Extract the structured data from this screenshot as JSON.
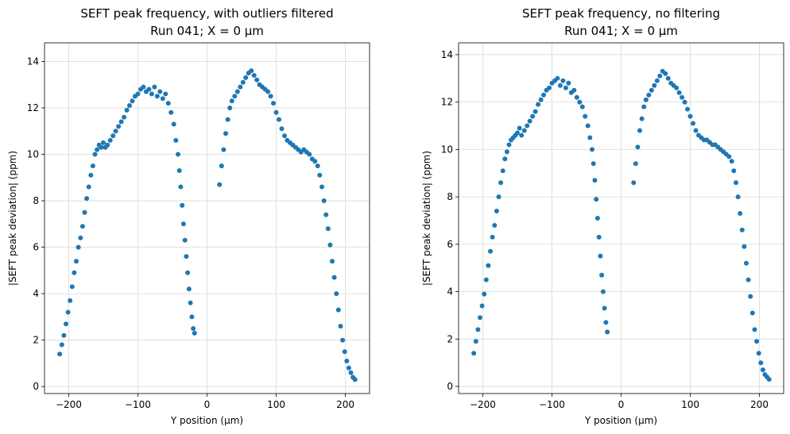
{
  "chart_data": [
    {
      "type": "scatter",
      "title": "SEFT peak frequency, with outliers filtered",
      "subtitle": "Run 041; X = 0 µm",
      "xlabel": "Y position (µm)",
      "ylabel": "|SEFT peak deviation| (ppm)",
      "xlim": [
        -235,
        235
      ],
      "ylim": [
        -0.3,
        14.8
      ],
      "xticks": [
        -200,
        -100,
        0,
        100,
        200
      ],
      "xtick_labels": [
        "−200",
        "−100",
        "0",
        "100",
        "200"
      ],
      "yticks": [
        0,
        2,
        4,
        6,
        8,
        10,
        12,
        14
      ],
      "ytick_labels": [
        "0",
        "2",
        "4",
        "6",
        "8",
        "10",
        "12",
        "14"
      ],
      "grid": true,
      "marker_color": "#1f77b4",
      "points": [
        [
          -213,
          1.4
        ],
        [
          -210,
          1.8
        ],
        [
          -207,
          2.2
        ],
        [
          -204,
          2.7
        ],
        [
          -201,
          3.2
        ],
        [
          -198,
          3.7
        ],
        [
          -195,
          4.3
        ],
        [
          -192,
          4.9
        ],
        [
          -189,
          5.4
        ],
        [
          -186,
          6.0
        ],
        [
          -183,
          6.4
        ],
        [
          -180,
          6.9
        ],
        [
          -177,
          7.5
        ],
        [
          -174,
          8.1
        ],
        [
          -171,
          8.6
        ],
        [
          -168,
          9.1
        ],
        [
          -165,
          9.5
        ],
        [
          -162,
          10.0
        ],
        [
          -159,
          10.2
        ],
        [
          -156,
          10.4
        ],
        [
          -153,
          10.3
        ],
        [
          -150,
          10.5
        ],
        [
          -147,
          10.3
        ],
        [
          -144,
          10.4
        ],
        [
          -140,
          10.6
        ],
        [
          -136,
          10.8
        ],
        [
          -132,
          11.0
        ],
        [
          -128,
          11.2
        ],
        [
          -124,
          11.4
        ],
        [
          -120,
          11.6
        ],
        [
          -116,
          11.9
        ],
        [
          -112,
          12.1
        ],
        [
          -108,
          12.3
        ],
        [
          -104,
          12.5
        ],
        [
          -100,
          12.6
        ],
        [
          -96,
          12.8
        ],
        [
          -92,
          12.9
        ],
        [
          -88,
          12.7
        ],
        [
          -84,
          12.8
        ],
        [
          -80,
          12.6
        ],
        [
          -76,
          12.9
        ],
        [
          -72,
          12.5
        ],
        [
          -68,
          12.7
        ],
        [
          -64,
          12.4
        ],
        [
          -60,
          12.6
        ],
        [
          -56,
          12.2
        ],
        [
          -52,
          11.8
        ],
        [
          -48,
          11.3
        ],
        [
          -45,
          10.6
        ],
        [
          -42,
          10.0
        ],
        [
          -40,
          9.3
        ],
        [
          -38,
          8.6
        ],
        [
          -36,
          7.8
        ],
        [
          -34,
          7.0
        ],
        [
          -32,
          6.3
        ],
        [
          -30,
          5.6
        ],
        [
          -28,
          4.9
        ],
        [
          -26,
          4.2
        ],
        [
          -24,
          3.6
        ],
        [
          -22,
          3.0
        ],
        [
          -20,
          2.5
        ],
        [
          -18,
          2.3
        ],
        [
          18,
          8.7
        ],
        [
          21,
          9.5
        ],
        [
          24,
          10.2
        ],
        [
          27,
          10.9
        ],
        [
          30,
          11.5
        ],
        [
          33,
          12.0
        ],
        [
          36,
          12.3
        ],
        [
          40,
          12.5
        ],
        [
          44,
          12.7
        ],
        [
          48,
          12.9
        ],
        [
          52,
          13.1
        ],
        [
          56,
          13.3
        ],
        [
          60,
          13.5
        ],
        [
          64,
          13.6
        ],
        [
          68,
          13.4
        ],
        [
          72,
          13.2
        ],
        [
          76,
          13.0
        ],
        [
          80,
          12.9
        ],
        [
          84,
          12.8
        ],
        [
          88,
          12.7
        ],
        [
          92,
          12.5
        ],
        [
          96,
          12.2
        ],
        [
          100,
          11.8
        ],
        [
          104,
          11.5
        ],
        [
          108,
          11.1
        ],
        [
          112,
          10.8
        ],
        [
          116,
          10.6
        ],
        [
          120,
          10.5
        ],
        [
          124,
          10.4
        ],
        [
          128,
          10.3
        ],
        [
          132,
          10.2
        ],
        [
          136,
          10.1
        ],
        [
          140,
          10.2
        ],
        [
          144,
          10.1
        ],
        [
          148,
          10.0
        ],
        [
          152,
          9.8
        ],
        [
          156,
          9.7
        ],
        [
          160,
          9.5
        ],
        [
          163,
          9.1
        ],
        [
          166,
          8.6
        ],
        [
          169,
          8.0
        ],
        [
          172,
          7.4
        ],
        [
          175,
          6.8
        ],
        [
          178,
          6.1
        ],
        [
          181,
          5.4
        ],
        [
          184,
          4.7
        ],
        [
          187,
          4.0
        ],
        [
          190,
          3.3
        ],
        [
          193,
          2.6
        ],
        [
          196,
          2.0
        ],
        [
          199,
          1.5
        ],
        [
          202,
          1.1
        ],
        [
          205,
          0.8
        ],
        [
          208,
          0.6
        ],
        [
          211,
          0.4
        ],
        [
          214,
          0.3
        ]
      ]
    },
    {
      "type": "scatter",
      "title": "SEFT peak frequency, no filtering",
      "subtitle": "Run 041; X = 0 µm",
      "xlabel": "Y position (µm)",
      "ylabel": "|SEFT peak deviation| (ppm)",
      "xlim": [
        -235,
        235
      ],
      "ylim": [
        -0.3,
        14.5
      ],
      "xticks": [
        -200,
        -100,
        0,
        100,
        200
      ],
      "xtick_labels": [
        "−200",
        "−100",
        "0",
        "100",
        "200"
      ],
      "yticks": [
        0,
        2,
        4,
        6,
        8,
        10,
        12,
        14
      ],
      "ytick_labels": [
        "0",
        "2",
        "4",
        "6",
        "8",
        "10",
        "12",
        "14"
      ],
      "grid": true,
      "marker_color": "#1f77b4",
      "points": [
        [
          -213,
          1.4
        ],
        [
          -210,
          1.9
        ],
        [
          -207,
          2.4
        ],
        [
          -204,
          2.9
        ],
        [
          -201,
          3.4
        ],
        [
          -198,
          3.9
        ],
        [
          -195,
          4.5
        ],
        [
          -192,
          5.1
        ],
        [
          -189,
          5.7
        ],
        [
          -186,
          6.3
        ],
        [
          -183,
          6.8
        ],
        [
          -180,
          7.4
        ],
        [
          -177,
          8.0
        ],
        [
          -174,
          8.6
        ],
        [
          -171,
          9.1
        ],
        [
          -168,
          9.6
        ],
        [
          -165,
          9.9
        ],
        [
          -162,
          10.2
        ],
        [
          -159,
          10.4
        ],
        [
          -156,
          10.5
        ],
        [
          -153,
          10.6
        ],
        [
          -150,
          10.7
        ],
        [
          -147,
          10.9
        ],
        [
          -144,
          10.6
        ],
        [
          -140,
          10.8
        ],
        [
          -136,
          11.0
        ],
        [
          -132,
          11.2
        ],
        [
          -128,
          11.4
        ],
        [
          -124,
          11.6
        ],
        [
          -120,
          11.9
        ],
        [
          -116,
          12.1
        ],
        [
          -112,
          12.3
        ],
        [
          -108,
          12.5
        ],
        [
          -104,
          12.6
        ],
        [
          -100,
          12.8
        ],
        [
          -96,
          12.9
        ],
        [
          -92,
          13.0
        ],
        [
          -88,
          12.7
        ],
        [
          -84,
          12.9
        ],
        [
          -80,
          12.6
        ],
        [
          -76,
          12.8
        ],
        [
          -72,
          12.4
        ],
        [
          -68,
          12.5
        ],
        [
          -64,
          12.2
        ],
        [
          -60,
          12.0
        ],
        [
          -56,
          11.8
        ],
        [
          -52,
          11.4
        ],
        [
          -48,
          11.0
        ],
        [
          -45,
          10.5
        ],
        [
          -42,
          10.0
        ],
        [
          -40,
          9.4
        ],
        [
          -38,
          8.7
        ],
        [
          -36,
          7.9
        ],
        [
          -34,
          7.1
        ],
        [
          -32,
          6.3
        ],
        [
          -30,
          5.5
        ],
        [
          -28,
          4.7
        ],
        [
          -26,
          4.0
        ],
        [
          -24,
          3.3
        ],
        [
          -22,
          2.7
        ],
        [
          -20,
          2.3
        ],
        [
          18,
          8.6
        ],
        [
          21,
          9.4
        ],
        [
          24,
          10.1
        ],
        [
          27,
          10.8
        ],
        [
          30,
          11.3
        ],
        [
          33,
          11.8
        ],
        [
          36,
          12.1
        ],
        [
          40,
          12.3
        ],
        [
          44,
          12.5
        ],
        [
          48,
          12.7
        ],
        [
          52,
          12.9
        ],
        [
          56,
          13.1
        ],
        [
          60,
          13.3
        ],
        [
          64,
          13.2
        ],
        [
          68,
          13.0
        ],
        [
          72,
          12.8
        ],
        [
          76,
          12.7
        ],
        [
          80,
          12.6
        ],
        [
          84,
          12.4
        ],
        [
          88,
          12.2
        ],
        [
          92,
          12.0
        ],
        [
          96,
          11.7
        ],
        [
          100,
          11.4
        ],
        [
          104,
          11.1
        ],
        [
          108,
          10.8
        ],
        [
          112,
          10.6
        ],
        [
          116,
          10.5
        ],
        [
          120,
          10.4
        ],
        [
          124,
          10.4
        ],
        [
          128,
          10.3
        ],
        [
          132,
          10.2
        ],
        [
          136,
          10.2
        ],
        [
          140,
          10.1
        ],
        [
          144,
          10.0
        ],
        [
          148,
          9.9
        ],
        [
          152,
          9.8
        ],
        [
          156,
          9.7
        ],
        [
          160,
          9.5
        ],
        [
          163,
          9.1
        ],
        [
          166,
          8.6
        ],
        [
          169,
          8.0
        ],
        [
          172,
          7.3
        ],
        [
          175,
          6.6
        ],
        [
          178,
          5.9
        ],
        [
          181,
          5.2
        ],
        [
          184,
          4.5
        ],
        [
          187,
          3.8
        ],
        [
          190,
          3.1
        ],
        [
          193,
          2.4
        ],
        [
          196,
          1.9
        ],
        [
          199,
          1.4
        ],
        [
          202,
          1.0
        ],
        [
          205,
          0.7
        ],
        [
          208,
          0.5
        ],
        [
          211,
          0.4
        ],
        [
          214,
          0.3
        ]
      ]
    }
  ]
}
